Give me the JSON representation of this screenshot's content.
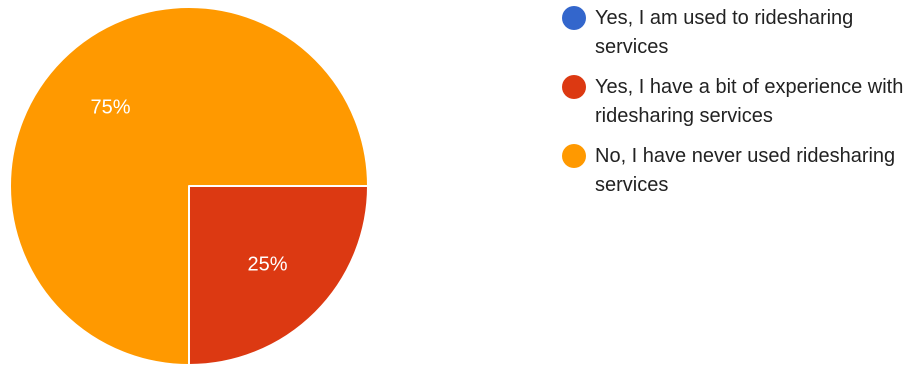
{
  "chart_data": {
    "type": "pie",
    "title": "",
    "slices": [
      {
        "label": "Yes, I am used to ridesharing services",
        "value": 0,
        "display": "",
        "color": "#3366CC"
      },
      {
        "label": "Yes, I have a bit of experience with ridesharing services",
        "value": 25,
        "display": "25%",
        "color": "#DC3912"
      },
      {
        "label": "No, I have never used ridesharing services",
        "value": 75,
        "display": "75%",
        "color": "#FF9900"
      }
    ],
    "legend_position": "right"
  }
}
